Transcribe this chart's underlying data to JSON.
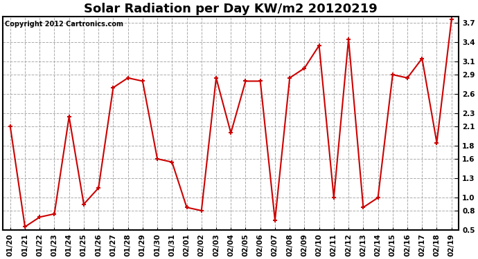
{
  "title": "Solar Radiation per Day KW/m2 20120219",
  "copyright": "Copyright 2012 Cartronics.com",
  "labels": [
    "01/20",
    "01/21",
    "01/22",
    "01/23",
    "01/24",
    "01/25",
    "01/26",
    "01/27",
    "01/28",
    "01/29",
    "01/30",
    "01/31",
    "02/01",
    "02/02",
    "02/03",
    "02/04",
    "02/05",
    "02/06",
    "02/07",
    "02/08",
    "02/09",
    "02/10",
    "02/11",
    "02/12",
    "02/13",
    "02/14",
    "02/15",
    "02/16",
    "02/17",
    "02/18",
    "02/19"
  ],
  "values": [
    2.1,
    0.55,
    0.7,
    0.75,
    2.25,
    0.9,
    1.15,
    2.7,
    2.85,
    2.8,
    1.6,
    1.55,
    0.85,
    0.8,
    2.85,
    2.0,
    2.8,
    2.8,
    0.65,
    2.85,
    3.0,
    3.35,
    1.0,
    3.45,
    0.85,
    1.0,
    2.9,
    2.85,
    3.15,
    1.85,
    3.75
  ],
  "line_color": "#cc0000",
  "marker_color": "#cc0000",
  "bg_color": "#ffffff",
  "plot_bg_color": "#ffffff",
  "grid_color": "#aaaaaa",
  "title_fontsize": 13,
  "copyright_fontsize": 7,
  "tick_fontsize": 7.5,
  "ylim": [
    0.5,
    3.8
  ],
  "yticks": [
    0.5,
    0.8,
    1.0,
    1.3,
    1.6,
    1.8,
    2.1,
    2.3,
    2.6,
    2.9,
    3.1,
    3.4,
    3.7
  ],
  "fig_width": 6.9,
  "fig_height": 3.75
}
